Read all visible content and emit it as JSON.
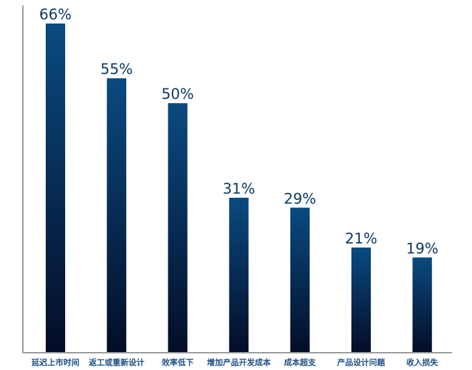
{
  "chart_data": {
    "type": "bar",
    "title": "",
    "xlabel": "",
    "ylabel": "",
    "categories": [
      "延迟上市时间",
      "返工或重新设计",
      "效率低下",
      "增加产品开发成本",
      "成本超支",
      "产品设计问题",
      "收入损失"
    ],
    "values": [
      66,
      55,
      50,
      31,
      29,
      21,
      19
    ],
    "value_labels": [
      "66%",
      "55%",
      "50%",
      "31%",
      "29%",
      "21%",
      "19%"
    ],
    "ylim": [
      0,
      66
    ],
    "grid": false,
    "legend": "none"
  },
  "colors": {
    "bar_top": "#0a4a80",
    "bar_bottom": "#040d27",
    "axis": "#999999",
    "value_text": "#0d3a66",
    "category_text": "#1e4f86"
  }
}
